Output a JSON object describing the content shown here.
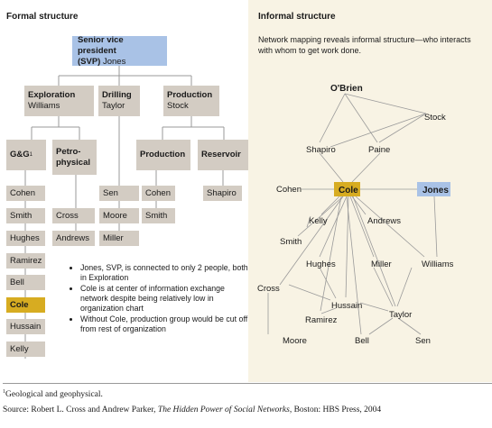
{
  "formal": {
    "title": "Formal structure",
    "svp": {
      "title": "Senior vice president",
      "title2_bold": "(SVP)",
      "name": "Jones"
    },
    "divisions": [
      {
        "label": "Exploration",
        "name": "Williams"
      },
      {
        "label": "Drilling",
        "name": "Taylor"
      },
      {
        "label": "Production",
        "name": "Stock"
      }
    ],
    "groups": {
      "gg": "G&G",
      "gg_marker": "1",
      "petro_line1": "Petro-",
      "petro_line2": "physical",
      "production": "Production",
      "reservoir": "Reservoir"
    },
    "gg_members": [
      "Cohen",
      "Smith",
      "Hughes",
      "Ramirez",
      "Bell",
      "Cole",
      "Hussain",
      "Kelly"
    ],
    "petro_members": [
      "Cross",
      "Andrews"
    ],
    "drilling_members": [
      "Sen",
      "Moore",
      "Miller"
    ],
    "production_members": [
      "Cohen",
      "Smith"
    ],
    "reservoir_members": [
      "Shapiro"
    ],
    "notes": [
      "Jones, SVP, is connected to only 2 people, both in Exploration",
      "Cole is at center of information exchange network despite being relatively low in organization chart",
      "Without Cole, production group would be cut off from rest of organization"
    ]
  },
  "informal": {
    "title": "Informal structure",
    "subtitle": "Network mapping reveals informal structure—who interacts with whom to get work done.",
    "nodes": {
      "obrien": "O'Brien",
      "stock": "Stock",
      "shapiro": "Shapiro",
      "paine": "Paine",
      "cohen": "Cohen",
      "cole": "Cole",
      "jones": "Jones",
      "kelly": "Kelly",
      "andrews": "Andrews",
      "smith": "Smith",
      "hughes": "Hughes",
      "miller": "Miller",
      "williams": "Williams",
      "cross": "Cross",
      "hussain": "Hussain",
      "ramirez": "Ramirez",
      "taylor": "Taylor",
      "moore": "Moore",
      "bell": "Bell",
      "sen": "Sen"
    },
    "colors": {
      "cole": "#d7ac21",
      "jones": "#a9c2e6",
      "box": "#d3ccc3",
      "panel": "#f8f3e4",
      "line": "#999999"
    }
  },
  "footnotes": {
    "marker": "1",
    "definition": "Geological and geophysical.",
    "source_prefix": "Source: Robert L. Cross and Andrew Parker, ",
    "source_title": "The Hidden Power of Social Networks",
    "source_suffix": ", Boston: HBS Press, 2004"
  }
}
